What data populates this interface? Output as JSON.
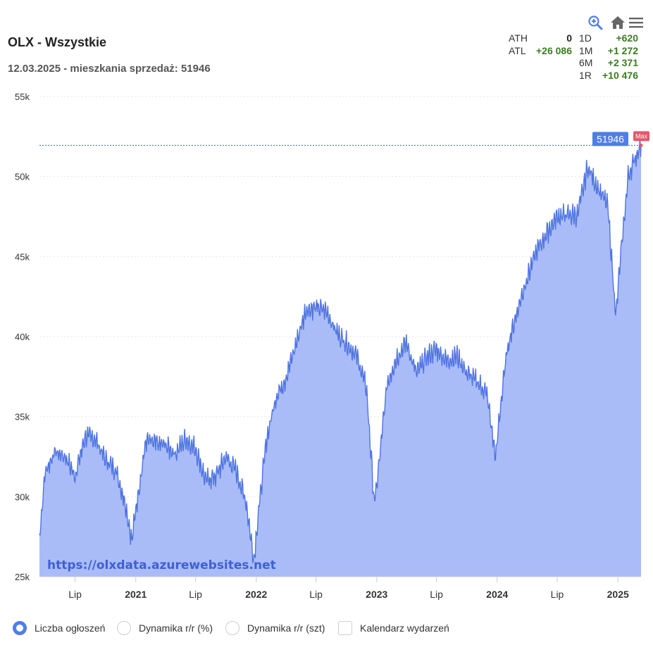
{
  "header": {
    "title": "OLX - Wszystkie",
    "subtitle": "12.03.2025 - mieszkania sprzedaż: 51946"
  },
  "toolbar": {
    "icons": [
      "zoom-icon",
      "home-icon",
      "menu-icon"
    ]
  },
  "stats": {
    "ath_label": "ATH",
    "ath_value": "0",
    "atl_label": "ATL",
    "atl_value": "+26 086",
    "d1_label": "1D",
    "d1_value": "+620",
    "m1_label": "1M",
    "m1_value": "+1 272",
    "m6_label": "6M",
    "m6_value": "+2 371",
    "r1_label": "1R",
    "r1_value": "+10 476"
  },
  "chart_data": {
    "type": "area",
    "title": "OLX - Wszystkie",
    "subtitle": "12.03.2025 - mieszkania sprzedaż: 51946",
    "y_ticks": [
      "55k",
      "50k",
      "45k",
      "40k",
      "35k",
      "30k",
      "25k"
    ],
    "ylim": [
      25000,
      55000
    ],
    "x_ticks": [
      "Lip",
      "2021",
      "Lip",
      "2022",
      "Lip",
      "2023",
      "Lip",
      "2024",
      "Lip",
      "2025"
    ],
    "xlim": [
      "2020-03-15",
      "2025-03-12"
    ],
    "grid": true,
    "series": [
      {
        "name": "Liczba ogłoszeń",
        "x": [
          "2020-03-15",
          "2020-04-01",
          "2020-05-01",
          "2020-06-01",
          "2020-07-01",
          "2020-08-01",
          "2020-09-01",
          "2020-10-01",
          "2020-11-01",
          "2020-12-01",
          "2020-12-20",
          "2021-01-01",
          "2021-02-01",
          "2021-03-01",
          "2021-04-01",
          "2021-05-01",
          "2021-06-01",
          "2021-07-01",
          "2021-08-01",
          "2021-09-01",
          "2021-10-01",
          "2021-11-01",
          "2021-12-01",
          "2021-12-25",
          "2022-01-05",
          "2022-02-01",
          "2022-03-01",
          "2022-04-01",
          "2022-05-01",
          "2022-06-01",
          "2022-07-01",
          "2022-08-01",
          "2022-09-01",
          "2022-10-01",
          "2022-11-01",
          "2022-12-01",
          "2022-12-25",
          "2023-01-05",
          "2023-02-01",
          "2023-03-01",
          "2023-04-01",
          "2023-05-01",
          "2023-06-01",
          "2023-07-01",
          "2023-08-01",
          "2023-09-01",
          "2023-10-01",
          "2023-11-01",
          "2023-12-01",
          "2023-12-28",
          "2024-01-05",
          "2024-02-01",
          "2024-03-01",
          "2024-04-01",
          "2024-05-01",
          "2024-06-01",
          "2024-07-01",
          "2024-08-01",
          "2024-09-01",
          "2024-10-01",
          "2024-11-01",
          "2024-12-01",
          "2024-12-26",
          "2025-01-05",
          "2025-02-01",
          "2025-03-01",
          "2025-03-12"
        ],
        "y": [
          27500,
          31500,
          32800,
          32500,
          31300,
          33800,
          33600,
          32300,
          31700,
          29500,
          27200,
          29200,
          33500,
          33300,
          33200,
          32700,
          33600,
          33000,
          31000,
          31300,
          32500,
          31600,
          29700,
          26000,
          28500,
          33500,
          36200,
          37400,
          39500,
          41700,
          41800,
          41600,
          40300,
          39600,
          38800,
          36800,
          29500,
          31400,
          37000,
          38600,
          39600,
          37700,
          38700,
          39200,
          38500,
          38800,
          37700,
          37200,
          36400,
          32300,
          34500,
          39300,
          41500,
          43700,
          45400,
          46500,
          47500,
          47600,
          47600,
          50600,
          49300,
          48200,
          41200,
          44000,
          50000,
          51500,
          51946
        ]
      }
    ],
    "reference_line": {
      "value": 51946,
      "label": "51946"
    },
    "max_marker": "Max",
    "watermark": "https://olxdata.azurewebsites.net"
  },
  "legend": {
    "items": [
      {
        "label": "Liczba ogłoszeń",
        "state": "selected"
      },
      {
        "label": "Dynamika r/r (%)",
        "state": "unselected"
      },
      {
        "label": "Dynamika r/r (szt)",
        "state": "unselected"
      },
      {
        "label": "Kalendarz wydarzeń",
        "state": "unchecked"
      }
    ]
  },
  "colors": {
    "series_line": "#4f73e0",
    "series_fill": "#a9bcf8",
    "reference_line": "#4f73e0",
    "reference_label_bg": "#4f7ee8",
    "max_badge_bg": "#e05a6b",
    "stat_positive": "#3a7d1f",
    "watermark": "#3f5fd6"
  }
}
